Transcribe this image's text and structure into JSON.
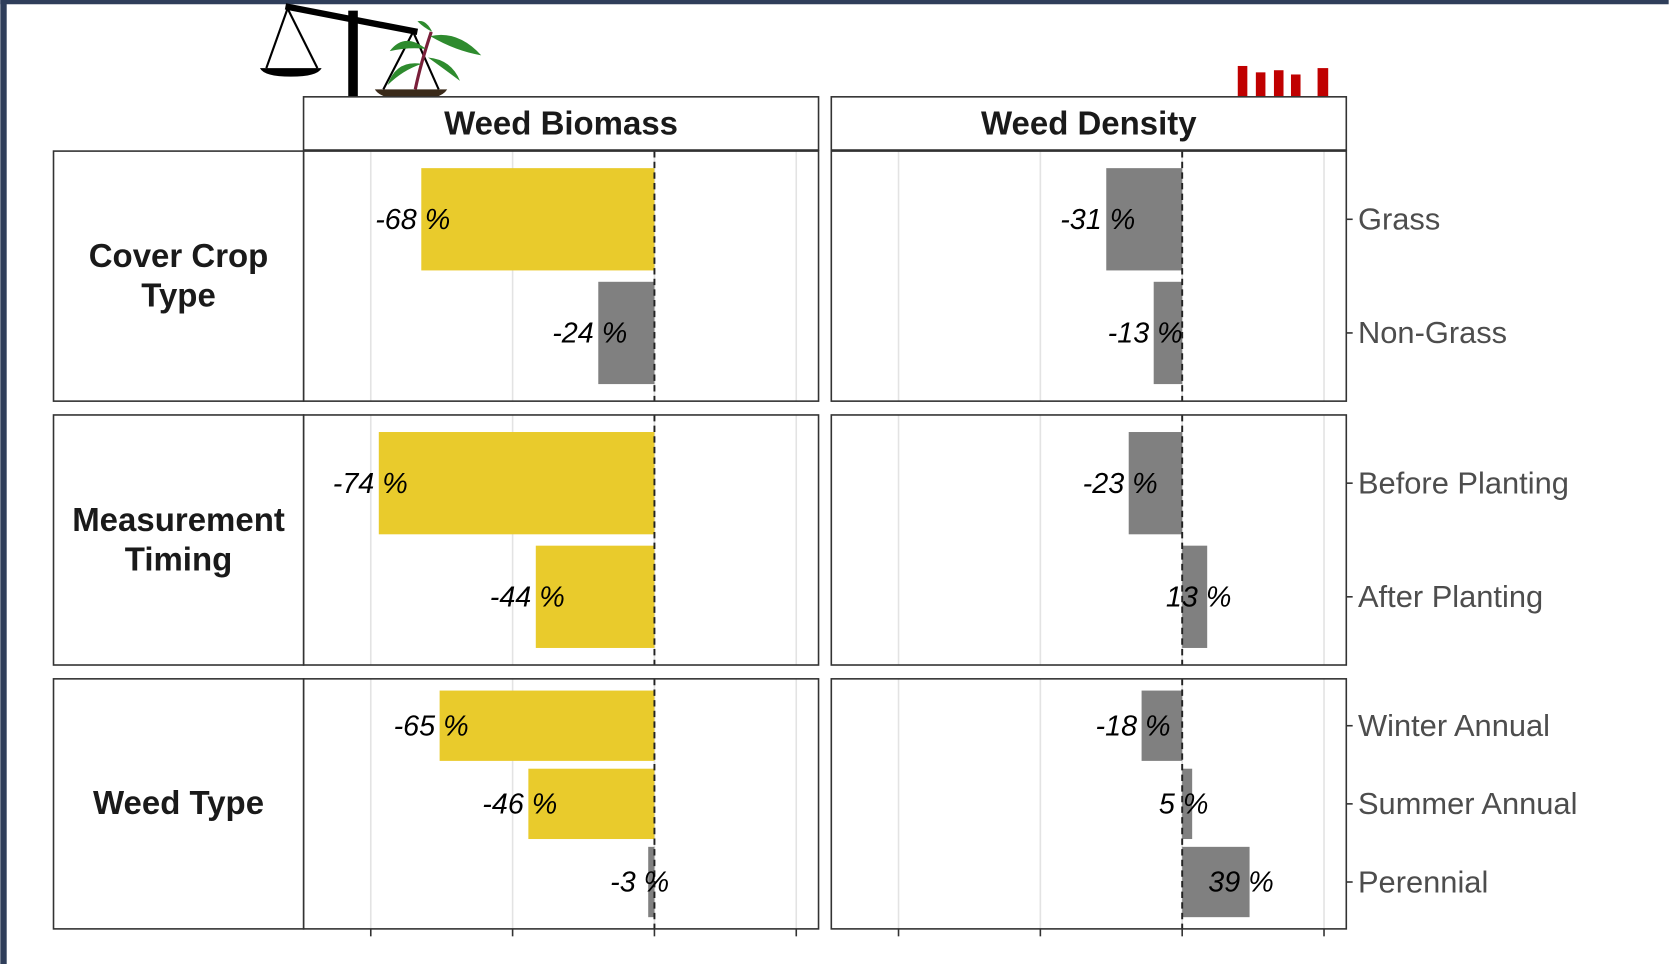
{
  "chart_data": {
    "type": "bar",
    "orientation": "horizontal",
    "xscale": "log-ratio",
    "xlim": [
      -82,
      123
    ],
    "xticks": [
      -75,
      -50,
      0,
      100
    ],
    "grid": true,
    "groups": [
      {
        "label": "Cover Crop Type",
        "categories": [
          "Grass",
          "Non-Grass"
        ]
      },
      {
        "label": "Measurement Timing",
        "categories": [
          "Before Planting",
          "After Planting"
        ]
      },
      {
        "label": "Weed Type",
        "categories": [
          "Winter Annual",
          "Summer Annual",
          "Perennial"
        ]
      }
    ],
    "panels": [
      {
        "title": "Weed Biomass",
        "values": [
          [
            -68,
            -24
          ],
          [
            -74,
            -44
          ],
          [
            -65,
            -46,
            -3
          ]
        ],
        "value_labels": [
          [
            "-68 %",
            "-24 %"
          ],
          [
            "-74 %",
            "-44 %"
          ],
          [
            "-65 %",
            "-46 %",
            "-3 %"
          ]
        ],
        "colors": [
          [
            "#e9cb2c",
            "#808080"
          ],
          [
            "#e9cb2c",
            "#e9cb2c"
          ],
          [
            "#e9cb2c",
            "#e9cb2c",
            "#808080"
          ]
        ]
      },
      {
        "title": "Weed Density",
        "values": [
          [
            -31,
            -13
          ],
          [
            -23,
            13
          ],
          [
            -18,
            5,
            39
          ]
        ],
        "value_labels": [
          [
            "-31 %",
            "-13 %"
          ],
          [
            "-23 %",
            "13 %"
          ],
          [
            "-18 %",
            "5 %",
            "39 %"
          ]
        ],
        "colors": [
          [
            "#808080",
            "#808080"
          ],
          [
            "#808080",
            "#808080"
          ],
          [
            "#808080",
            "#808080",
            "#808080"
          ]
        ]
      }
    ]
  }
}
